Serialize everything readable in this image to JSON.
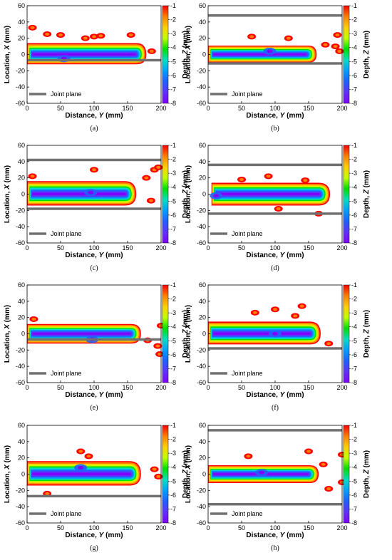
{
  "figure": {
    "colorbar": {
      "label_prefix": "Depth, ",
      "label_var": "Z",
      "label_suffix": " (mm)",
      "ticks": [
        "-1",
        "-2",
        "-3",
        "-4",
        "-5",
        "-6",
        "-7",
        "-8"
      ],
      "colors": [
        "#ff0000",
        "#ff8000",
        "#ffd000",
        "#c0ff00",
        "#00e000",
        "#00e0c0",
        "#00a0ff",
        "#2060ff",
        "#6030ff",
        "#8000ff"
      ]
    },
    "legend_label": "Joint plane",
    "joint_color": "#707070"
  },
  "chart_data": [
    {
      "type": "heatmap",
      "panel": "(a)",
      "xlabel_prefix": "Distance, ",
      "xlabel_var": "Y",
      "xlabel_suffix": " (mm)",
      "ylabel_prefix": "Location, ",
      "ylabel_var": "X",
      "ylabel_suffix": " (mm)",
      "xlim": [
        0,
        200
      ],
      "ylim": [
        -60,
        60
      ],
      "x_ticks": [
        "0",
        "50",
        "100",
        "150",
        "200"
      ],
      "y_ticks": [
        "60",
        "40",
        "20",
        "0",
        "-20",
        "-40",
        "-60"
      ],
      "joint_planes": [
        -7
      ],
      "bead": {
        "start": 0,
        "end": 178,
        "half_width_top": 14,
        "half_width_bottom": 12,
        "spot": {
          "x": 55,
          "y": -5
        }
      },
      "outliers": [
        {
          "x": 8,
          "y": 33
        },
        {
          "x": 30,
          "y": 25
        },
        {
          "x": 50,
          "y": 24
        },
        {
          "x": 87,
          "y": 20
        },
        {
          "x": 100,
          "y": 22
        },
        {
          "x": 110,
          "y": 23
        },
        {
          "x": 155,
          "y": 24
        },
        {
          "x": 186,
          "y": 4
        }
      ]
    },
    {
      "type": "heatmap",
      "panel": "(b)",
      "xlabel_prefix": "Distance, ",
      "xlabel_var": "Y",
      "xlabel_suffix": " (mm)",
      "ylabel_prefix": "Location, ",
      "ylabel_var": "X",
      "ylabel_suffix": " (mm)",
      "xlim": [
        0,
        200
      ],
      "ylim": [
        -60,
        60
      ],
      "x_ticks": [
        "0",
        "50",
        "100",
        "150",
        "200"
      ],
      "y_ticks": [
        "60",
        "40",
        "20",
        "0",
        "-20",
        "-40",
        "-60"
      ],
      "joint_planes": [
        48,
        -11
      ],
      "bead": {
        "start": 0,
        "end": 162,
        "half_width_top": 11,
        "half_width_bottom": 10,
        "spot": {
          "x": 92,
          "y": 4
        }
      },
      "outliers": [
        {
          "x": 65,
          "y": 22
        },
        {
          "x": 120,
          "y": 20
        },
        {
          "x": 175,
          "y": 12
        },
        {
          "x": 190,
          "y": 10
        },
        {
          "x": 193,
          "y": 24
        },
        {
          "x": 196,
          "y": 4
        }
      ]
    },
    {
      "type": "heatmap",
      "panel": "(c)",
      "xlabel_prefix": "Distance, ",
      "xlabel_var": "Y",
      "xlabel_suffix": " (mm)",
      "ylabel_prefix": "Location, ",
      "ylabel_var": "X",
      "ylabel_suffix": " (mm)",
      "xlim": [
        0,
        200
      ],
      "ylim": [
        -60,
        60
      ],
      "x_ticks": [
        "0",
        "50",
        "100",
        "150",
        "200"
      ],
      "y_ticks": [
        "60",
        "40",
        "20",
        "0",
        "-20",
        "-40",
        "-60"
      ],
      "joint_planes": [
        42,
        -18
      ],
      "bead": {
        "start": 0,
        "end": 163,
        "half_width_top": 16,
        "half_width_bottom": 14,
        "spot": {
          "x": 95,
          "y": 2
        }
      },
      "outliers": [
        {
          "x": 8,
          "y": 22
        },
        {
          "x": 100,
          "y": 30
        },
        {
          "x": 178,
          "y": 20
        },
        {
          "x": 185,
          "y": -8
        },
        {
          "x": 190,
          "y": 30
        },
        {
          "x": 196,
          "y": 33
        }
      ]
    },
    {
      "type": "heatmap",
      "panel": "(d)",
      "xlabel_prefix": "Distance, ",
      "xlabel_var": "Y",
      "xlabel_suffix": " (mm)",
      "ylabel_prefix": "Location, ",
      "ylabel_var": "X",
      "ylabel_suffix": " (mm)",
      "xlim": [
        0,
        200
      ],
      "ylim": [
        -60,
        60
      ],
      "x_ticks": [
        "0",
        "50",
        "100",
        "150",
        "200"
      ],
      "y_ticks": [
        "60",
        "40",
        "20",
        "0",
        "-20",
        "-40",
        "-60"
      ],
      "joint_planes": [
        36,
        -24
      ],
      "bead": {
        "start": 5,
        "end": 182,
        "half_width_top": 14,
        "half_width_bottom": 14,
        "spot": {
          "x": 12,
          "y": -2
        }
      },
      "outliers": [
        {
          "x": 50,
          "y": 18
        },
        {
          "x": 90,
          "y": 22
        },
        {
          "x": 105,
          "y": -18
        },
        {
          "x": 145,
          "y": 17
        },
        {
          "x": 165,
          "y": -24
        }
      ]
    },
    {
      "type": "heatmap",
      "panel": "(e)",
      "xlabel_prefix": "Distance, ",
      "xlabel_var": "Y",
      "xlabel_suffix": " (mm)",
      "ylabel_prefix": "Location, ",
      "ylabel_var": "X",
      "ylabel_suffix": " (mm)",
      "xlim": [
        0,
        200
      ],
      "ylim": [
        -60,
        60
      ],
      "x_ticks": [
        "0",
        "50",
        "100",
        "150",
        "200"
      ],
      "y_ticks": [
        "60",
        "40",
        "20",
        "0",
        "-20",
        "-40",
        "-60"
      ],
      "joint_planes": [
        -7
      ],
      "bead": {
        "start": 0,
        "end": 170,
        "half_width_top": 12,
        "half_width_bottom": 12,
        "spot": {
          "x": 97,
          "y": -7
        }
      },
      "outliers": [
        {
          "x": 10,
          "y": 18
        },
        {
          "x": 195,
          "y": -15
        },
        {
          "x": 198,
          "y": -25
        },
        {
          "x": 200,
          "y": 10
        },
        {
          "x": 180,
          "y": -8
        }
      ]
    },
    {
      "type": "heatmap",
      "panel": "(f)",
      "xlabel_prefix": "Distance, ",
      "xlabel_var": "Y",
      "xlabel_suffix": " (mm)",
      "ylabel_prefix": "Location, ",
      "ylabel_var": "X",
      "ylabel_suffix": " (mm)",
      "xlim": [
        0,
        200
      ],
      "ylim": [
        -60,
        60
      ],
      "x_ticks": [
        "0",
        "50",
        "100",
        "150",
        "200"
      ],
      "y_ticks": [
        "60",
        "40",
        "20",
        "0",
        "-20",
        "-40",
        "-60"
      ],
      "joint_planes": [
        -18
      ],
      "bead": {
        "start": 0,
        "end": 168,
        "half_width_top": 15,
        "half_width_bottom": 13,
        "spot": {
          "x": 100,
          "y": 0
        }
      },
      "outliers": [
        {
          "x": 70,
          "y": 26
        },
        {
          "x": 100,
          "y": 30
        },
        {
          "x": 130,
          "y": 22
        },
        {
          "x": 140,
          "y": 34
        },
        {
          "x": 180,
          "y": -12
        }
      ]
    },
    {
      "type": "heatmap",
      "panel": "(g)",
      "xlabel_prefix": "Distance, ",
      "xlabel_var": "Y",
      "xlabel_suffix": " (mm)",
      "ylabel_prefix": "Location, ",
      "ylabel_var": "X",
      "ylabel_suffix": " (mm)",
      "xlim": [
        0,
        200
      ],
      "ylim": [
        -60,
        60
      ],
      "x_ticks": [
        "0",
        "50",
        "100",
        "150",
        "200"
      ],
      "y_ticks": [
        "60",
        "40",
        "20",
        "0",
        "-20",
        "-40",
        "-60"
      ],
      "joint_planes": [
        -27
      ],
      "bead": {
        "start": 0,
        "end": 170,
        "half_width_top": 16,
        "half_width_bottom": 14,
        "spot": {
          "x": 80,
          "y": 8
        }
      },
      "outliers": [
        {
          "x": 80,
          "y": 28
        },
        {
          "x": 92,
          "y": 22
        },
        {
          "x": 190,
          "y": 6
        },
        {
          "x": 30,
          "y": -24
        },
        {
          "x": 196,
          "y": -3
        }
      ]
    },
    {
      "type": "heatmap",
      "panel": "(h)",
      "xlabel_prefix": "Distance, ",
      "xlabel_var": "Y",
      "xlabel_suffix": " (mm)",
      "ylabel_prefix": "Location, ",
      "ylabel_var": "X",
      "ylabel_suffix": " (mm)",
      "xlim": [
        0,
        200
      ],
      "ylim": [
        -60,
        60
      ],
      "x_ticks": [
        "0",
        "50",
        "100",
        "150",
        "200"
      ],
      "y_ticks": [
        "60",
        "40",
        "20",
        "0",
        "-20",
        "-40",
        "-60"
      ],
      "joint_planes": [
        54,
        -37
      ],
      "bead": {
        "start": 0,
        "end": 165,
        "half_width_top": 11,
        "half_width_bottom": 11,
        "spot": {
          "x": 80,
          "y": 2
        }
      },
      "outliers": [
        {
          "x": 60,
          "y": 22
        },
        {
          "x": 150,
          "y": 28
        },
        {
          "x": 172,
          "y": 12
        },
        {
          "x": 180,
          "y": -18
        },
        {
          "x": 200,
          "y": 24
        },
        {
          "x": 200,
          "y": -10
        }
      ]
    }
  ]
}
